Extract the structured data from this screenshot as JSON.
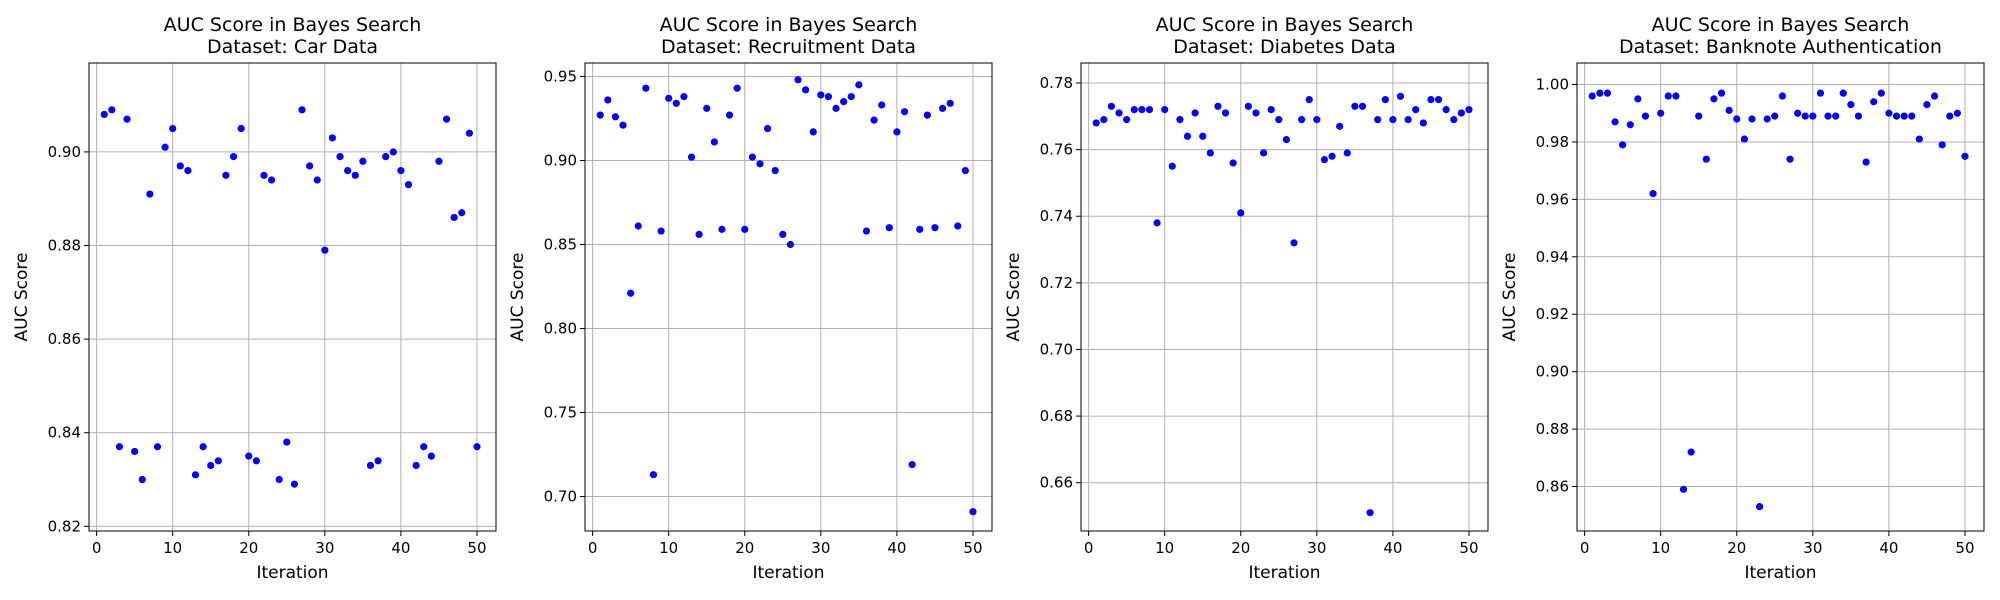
{
  "chart_data": [
    {
      "type": "scatter",
      "title": [
        "AUC Score in Bayes Search",
        "Dataset: Car Data"
      ],
      "xlabel": "Iteration",
      "ylabel": "AUC Score",
      "xlim": [
        -1,
        52.5
      ],
      "ylim": [
        0.819,
        0.919
      ],
      "xticks": [
        0,
        10,
        20,
        30,
        40,
        50
      ],
      "yticks": [
        0.82,
        0.84,
        0.86,
        0.88,
        0.9
      ],
      "ytick_labels": [
        "0.82",
        "0.84",
        "0.86",
        "0.88",
        "0.90"
      ],
      "grid": true,
      "marker_color": "#0000ff",
      "x": [
        1,
        2,
        3,
        4,
        5,
        6,
        7,
        8,
        9,
        10,
        11,
        12,
        13,
        14,
        15,
        16,
        17,
        18,
        19,
        20,
        21,
        22,
        23,
        24,
        25,
        26,
        27,
        28,
        29,
        30,
        31,
        32,
        33,
        34,
        35,
        36,
        37,
        38,
        39,
        40,
        41,
        42,
        43,
        44,
        45,
        46,
        47,
        48,
        49,
        50
      ],
      "y": [
        0.908,
        0.909,
        0.837,
        0.907,
        0.836,
        0.83,
        0.891,
        0.837,
        0.901,
        0.905,
        0.897,
        0.896,
        0.831,
        0.837,
        0.833,
        0.834,
        0.895,
        0.899,
        0.905,
        0.835,
        0.834,
        0.895,
        0.894,
        0.83,
        0.838,
        0.829,
        0.909,
        0.897,
        0.894,
        0.879,
        0.903,
        0.899,
        0.896,
        0.895,
        0.898,
        0.833,
        0.834,
        0.899,
        0.9,
        0.896,
        0.893,
        0.833,
        0.837,
        0.835,
        0.898,
        0.907,
        0.886,
        0.887,
        0.904,
        0.837
      ]
    },
    {
      "type": "scatter",
      "title": [
        "AUC Score in Bayes Search",
        "Dataset: Recruitment Data"
      ],
      "xlabel": "Iteration",
      "ylabel": "AUC Score",
      "xlim": [
        -1,
        52.5
      ],
      "ylim": [
        0.6795,
        0.958
      ],
      "xticks": [
        0,
        10,
        20,
        30,
        40,
        50
      ],
      "yticks": [
        0.7,
        0.75,
        0.8,
        0.85,
        0.9,
        0.95
      ],
      "ytick_labels": [
        "0.70",
        "0.75",
        "0.80",
        "0.85",
        "0.90",
        "0.95"
      ],
      "grid": true,
      "marker_color": "#0000ff",
      "x": [
        1,
        2,
        3,
        4,
        5,
        6,
        7,
        8,
        9,
        10,
        11,
        12,
        13,
        14,
        15,
        16,
        17,
        18,
        19,
        20,
        21,
        22,
        23,
        24,
        25,
        26,
        27,
        28,
        29,
        30,
        31,
        32,
        33,
        34,
        35,
        36,
        37,
        38,
        39,
        40,
        41,
        42,
        43,
        44,
        45,
        46,
        47,
        48,
        49,
        50
      ],
      "y": [
        0.927,
        0.936,
        0.926,
        0.921,
        0.821,
        0.861,
        0.943,
        0.713,
        0.858,
        0.937,
        0.934,
        0.938,
        0.902,
        0.856,
        0.931,
        0.911,
        0.859,
        0.927,
        0.943,
        0.859,
        0.902,
        0.898,
        0.919,
        0.894,
        0.856,
        0.85,
        0.948,
        0.942,
        0.917,
        0.939,
        0.938,
        0.931,
        0.935,
        0.938,
        0.945,
        0.858,
        0.924,
        0.933,
        0.86,
        0.917,
        0.929,
        0.719,
        0.859,
        0.927,
        0.86,
        0.931,
        0.934,
        0.861,
        0.894,
        0.691
      ]
    },
    {
      "type": "scatter",
      "title": [
        "AUC Score in Bayes Search",
        "Dataset: Diabetes Data"
      ],
      "xlabel": "Iteration",
      "ylabel": "AUC Score",
      "xlim": [
        -1,
        52.5
      ],
      "ylim": [
        0.6455,
        0.786
      ],
      "xticks": [
        0,
        10,
        20,
        30,
        40,
        50
      ],
      "yticks": [
        0.66,
        0.68,
        0.7,
        0.72,
        0.74,
        0.76,
        0.78
      ],
      "ytick_labels": [
        "0.66",
        "0.68",
        "0.70",
        "0.72",
        "0.74",
        "0.76",
        "0.78"
      ],
      "grid": true,
      "marker_color": "#0000ff",
      "x": [
        1,
        2,
        3,
        4,
        5,
        6,
        7,
        8,
        9,
        10,
        11,
        12,
        13,
        14,
        15,
        16,
        17,
        18,
        19,
        20,
        21,
        22,
        23,
        24,
        25,
        26,
        27,
        28,
        29,
        30,
        31,
        32,
        33,
        34,
        35,
        36,
        37,
        38,
        39,
        40,
        41,
        42,
        43,
        44,
        45,
        46,
        47,
        48,
        49,
        50
      ],
      "y": [
        0.768,
        0.769,
        0.773,
        0.771,
        0.769,
        0.772,
        0.772,
        0.772,
        0.738,
        0.772,
        0.755,
        0.769,
        0.764,
        0.771,
        0.764,
        0.759,
        0.773,
        0.771,
        0.756,
        0.741,
        0.773,
        0.771,
        0.759,
        0.772,
        0.769,
        0.763,
        0.732,
        0.769,
        0.775,
        0.769,
        0.757,
        0.758,
        0.767,
        0.759,
        0.773,
        0.773,
        0.651,
        0.769,
        0.775,
        0.769,
        0.776,
        0.769,
        0.772,
        0.768,
        0.775,
        0.775,
        0.772,
        0.769,
        0.771,
        0.772
      ]
    },
    {
      "type": "scatter",
      "title": [
        "AUC Score in Bayes Search",
        "Dataset: Banknote Authentication"
      ],
      "xlabel": "Iteration",
      "ylabel": "AUC Score",
      "xlim": [
        -1,
        52.5
      ],
      "ylim": [
        0.8445,
        1.0075
      ],
      "xticks": [
        0,
        10,
        20,
        30,
        40,
        50
      ],
      "yticks": [
        0.86,
        0.88,
        0.9,
        0.92,
        0.94,
        0.96,
        0.98,
        1.0
      ],
      "ytick_labels": [
        "0.86",
        "0.88",
        "0.90",
        "0.92",
        "0.94",
        "0.96",
        "0.98",
        "1.00"
      ],
      "grid": true,
      "marker_color": "#0000ff",
      "x": [
        1,
        2,
        3,
        4,
        5,
        6,
        7,
        8,
        9,
        10,
        11,
        12,
        13,
        14,
        15,
        16,
        17,
        18,
        19,
        20,
        21,
        22,
        23,
        24,
        25,
        26,
        27,
        28,
        29,
        30,
        31,
        32,
        33,
        34,
        35,
        36,
        37,
        38,
        39,
        40,
        41,
        42,
        43,
        44,
        45,
        46,
        47,
        48,
        49,
        50
      ],
      "y": [
        0.996,
        0.997,
        0.997,
        0.987,
        0.979,
        0.986,
        0.995,
        0.989,
        0.962,
        0.99,
        0.996,
        0.996,
        0.859,
        0.872,
        0.989,
        0.974,
        0.995,
        0.997,
        0.991,
        0.988,
        0.981,
        0.988,
        0.853,
        0.988,
        0.989,
        0.996,
        0.974,
        0.99,
        0.989,
        0.989,
        0.997,
        0.989,
        0.989,
        0.997,
        0.993,
        0.989,
        0.973,
        0.994,
        0.997,
        0.99,
        0.989,
        0.989,
        0.989,
        0.981,
        0.993,
        0.996,
        0.979,
        0.989,
        0.99,
        0.975
      ]
    }
  ]
}
